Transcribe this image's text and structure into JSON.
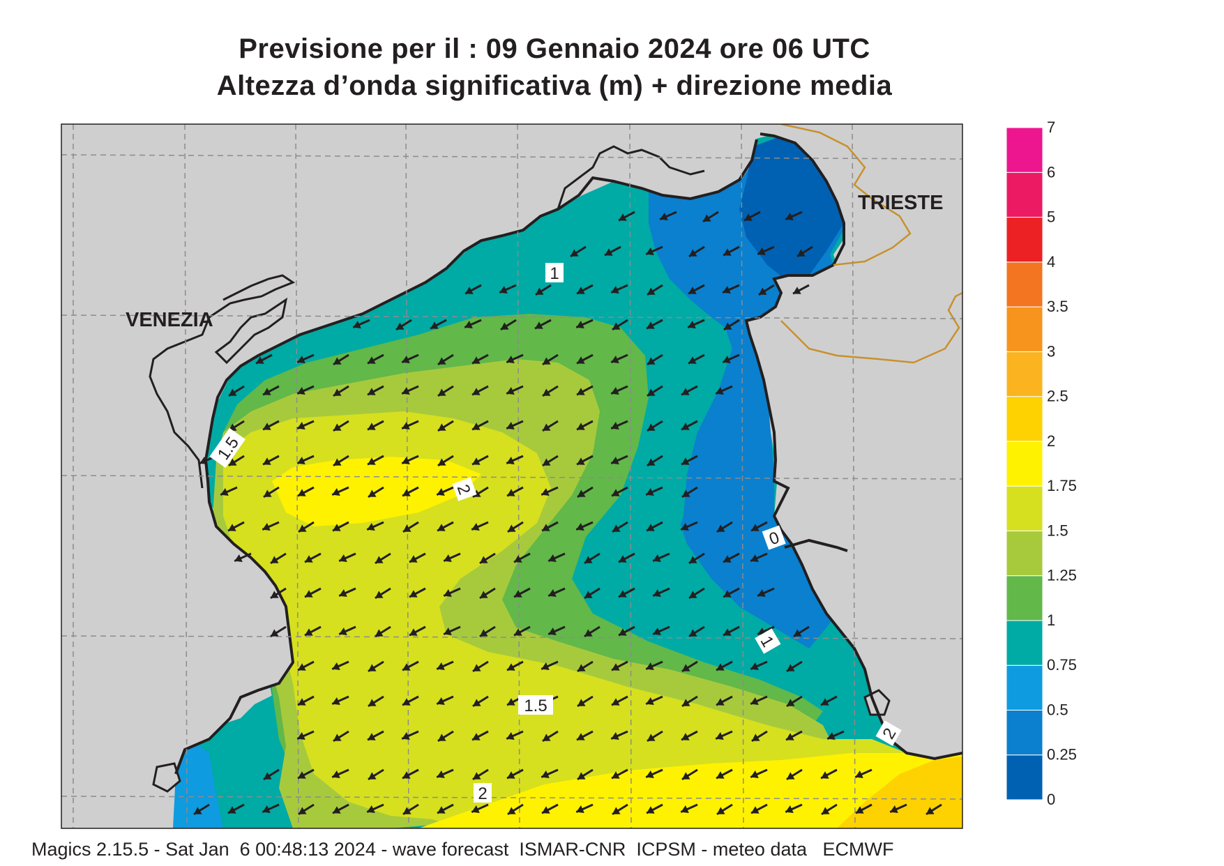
{
  "title": {
    "line1": "Previsione per il  :  09  Gennaio  2024   ore 06 UTC",
    "line2": "Altezza d’onda significativa (m) + direzione media"
  },
  "places": [
    {
      "id": "venezia",
      "name": "VENEZIA"
    },
    {
      "id": "trieste",
      "name": "TRIESTE"
    }
  ],
  "contour_labels": [
    "1",
    "1.5",
    "2",
    "0",
    "1",
    "1.5",
    "2",
    "2"
  ],
  "legend": {
    "levels": [
      "0",
      "0.25",
      "0.5",
      "0.75",
      "1",
      "1.25",
      "1.5",
      "1.75",
      "2",
      "2.5",
      "3",
      "3.5",
      "4",
      "5",
      "6",
      "7"
    ],
    "colors": [
      "#0061b3",
      "#0a80cf",
      "#0e9be0",
      "#00aaa5",
      "#62b849",
      "#a7ca3d",
      "#d6e01f",
      "#fff200",
      "#fdd200",
      "#fbb320",
      "#f7941d",
      "#f37521",
      "#ec2124",
      "#ec1a63",
      "#ed168f"
    ]
  },
  "colors": {
    "land": "#cfcfd0",
    "coast": "#231f20",
    "border": "#c8912b",
    "grid": "#8c8c8c",
    "arrow": "#231f20"
  },
  "wave_direction": "towards south-west",
  "footer": "Magics 2.15.5 - Sat Jan  6 00:48:13 2024 - wave forecast  ISMAR-CNR  ICPSM - meteo data   ECMWF"
}
